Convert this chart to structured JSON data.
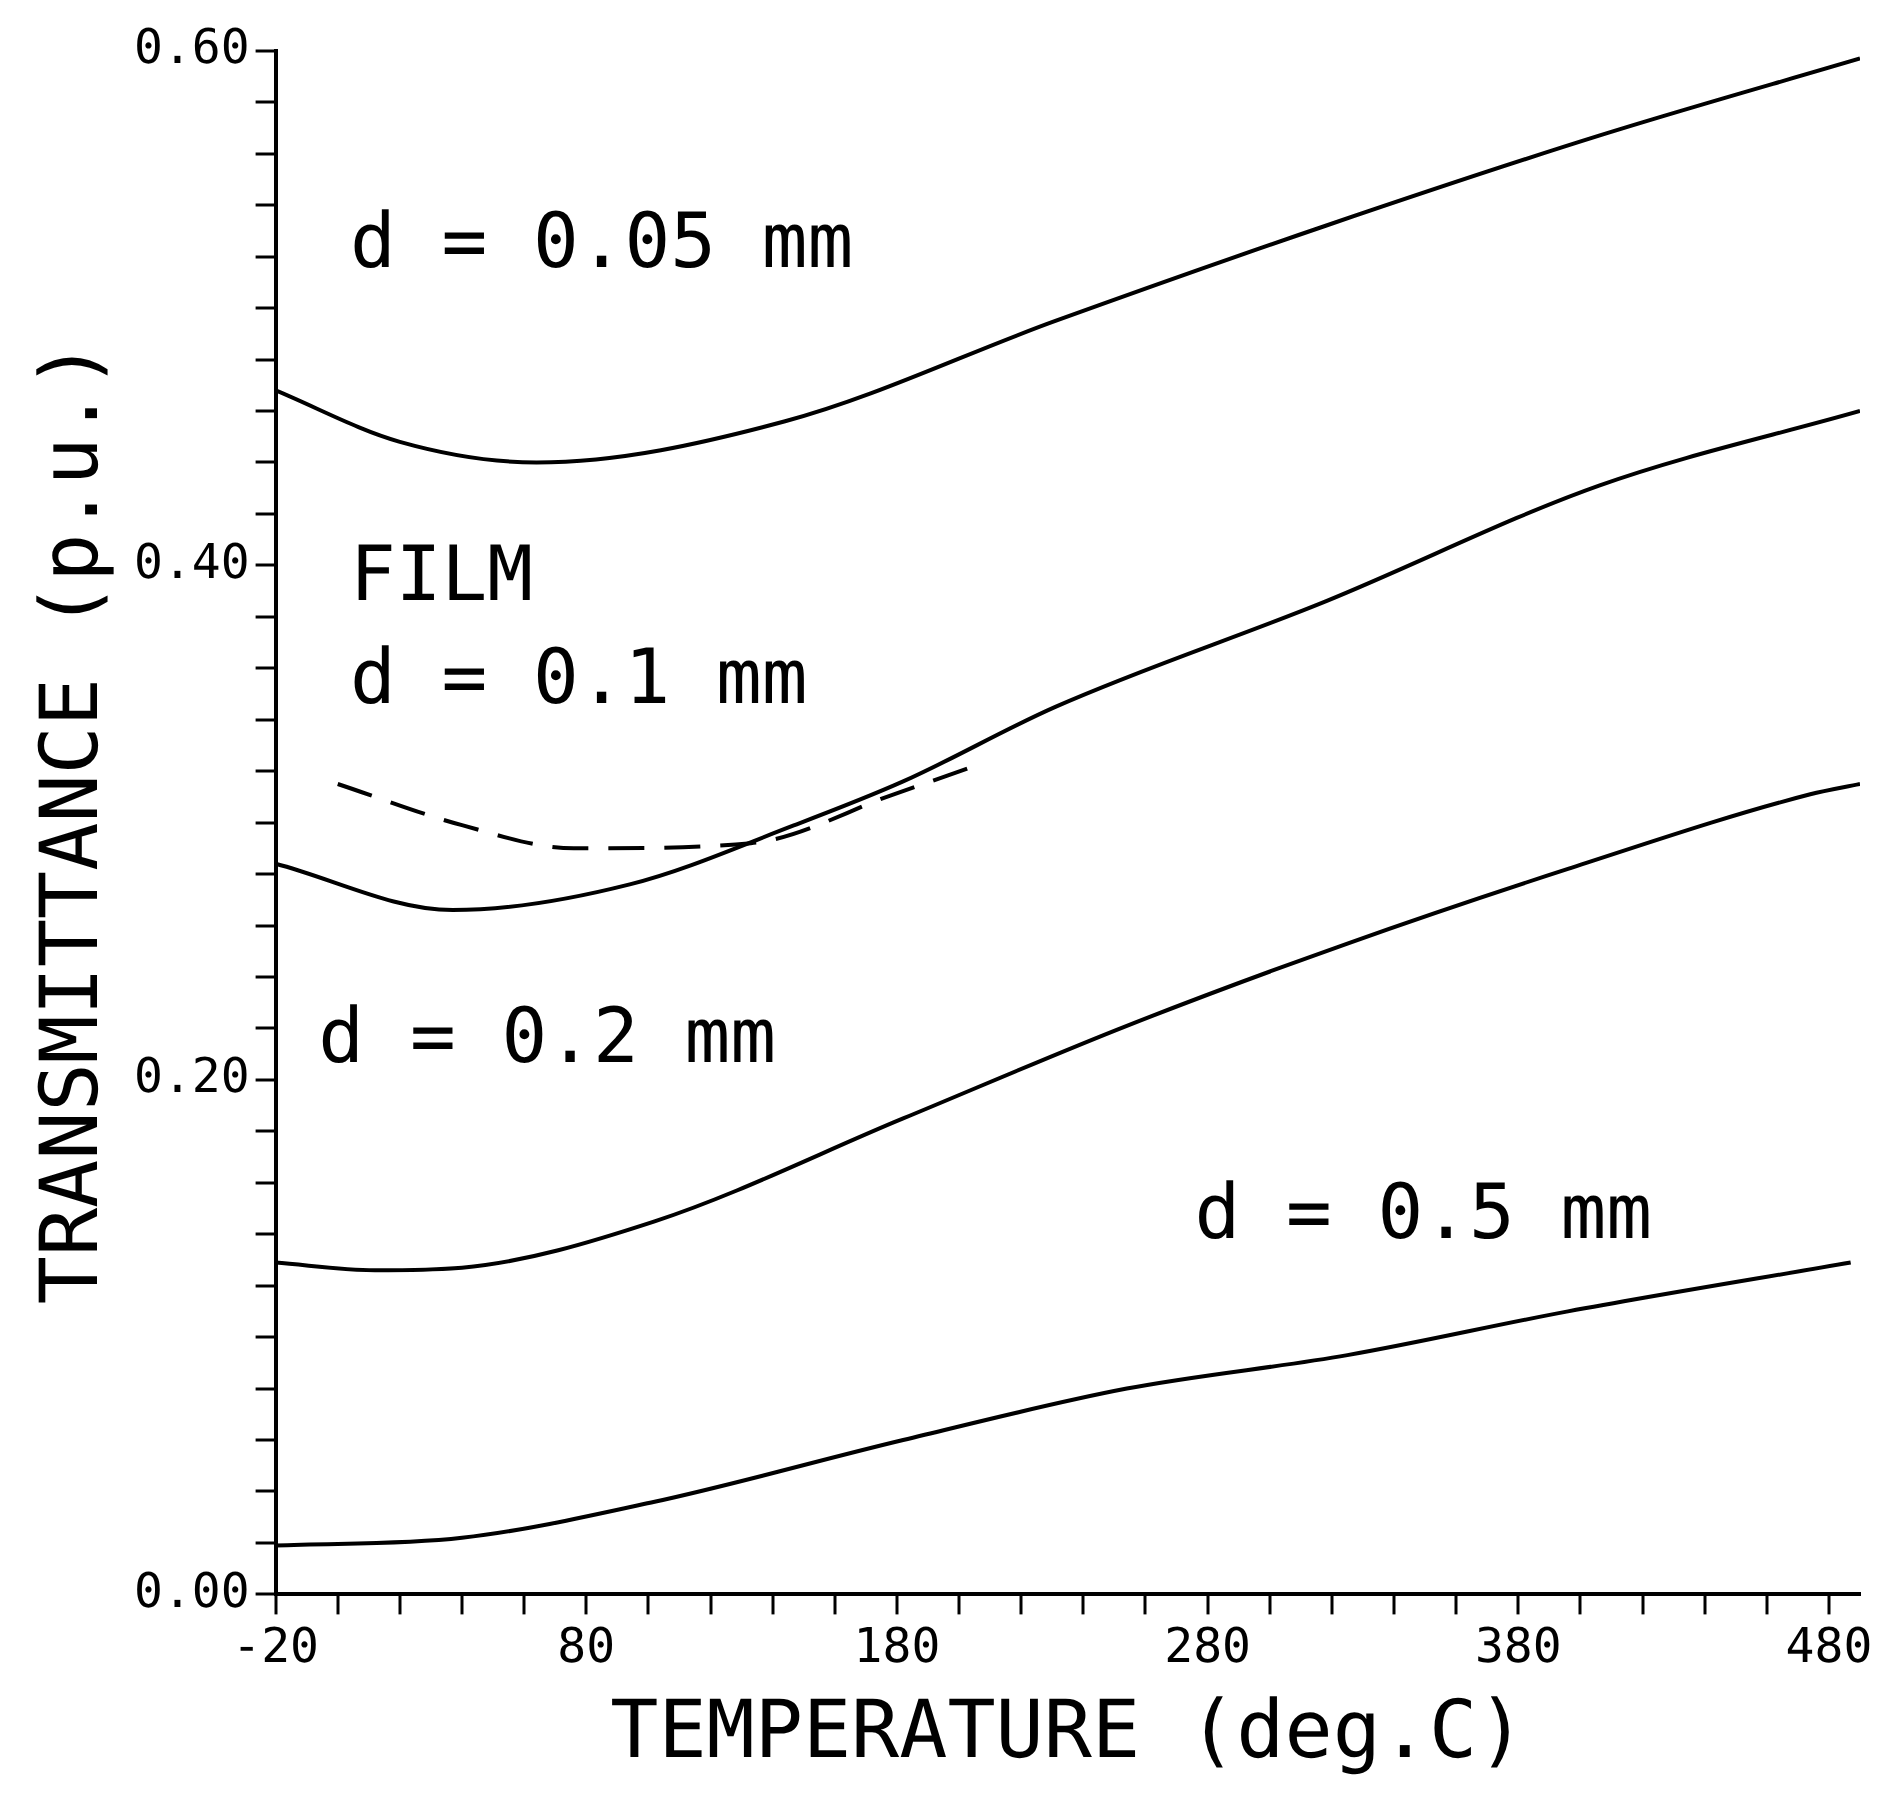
{
  "chart_data": {
    "type": "line",
    "xlabel": "TEMPERATURE (deg.C)",
    "ylabel": "TRANSMITTANCE (p.u.)",
    "xlim": [
      -20,
      490
    ],
    "ylim": [
      0,
      0.6
    ],
    "xticks": [
      -20,
      {
        "value": 0,
        "label": null
      },
      {
        "value": 20,
        "label": null
      },
      {
        "value": 40,
        "label": null
      },
      {
        "value": 60,
        "label": null
      },
      80,
      {
        "value": 100,
        "label": null
      },
      {
        "value": 120,
        "label": null
      },
      {
        "value": 140,
        "label": null
      },
      {
        "value": 160,
        "label": null
      },
      180,
      {
        "value": 200,
        "label": null
      },
      {
        "value": 220,
        "label": null
      },
      {
        "value": 240,
        "label": null
      },
      {
        "value": 260,
        "label": null
      },
      280,
      {
        "value": 300,
        "label": null
      },
      {
        "value": 320,
        "label": null
      },
      {
        "value": 340,
        "label": null
      },
      {
        "value": 360,
        "label": null
      },
      380,
      {
        "value": 400,
        "label": null
      },
      {
        "value": 420,
        "label": null
      },
      {
        "value": 440,
        "label": null
      },
      {
        "value": 460,
        "label": null
      },
      480
    ],
    "yticks": [
      {
        "value": 0,
        "label": "0.00"
      },
      {
        "value": 0.02,
        "label": null
      },
      {
        "value": 0.04,
        "label": null
      },
      {
        "value": 0.06,
        "label": null
      },
      {
        "value": 0.08,
        "label": null
      },
      {
        "value": 0.1,
        "label": null
      },
      {
        "value": 0.12,
        "label": null
      },
      {
        "value": 0.14,
        "label": null
      },
      {
        "value": 0.16,
        "label": null
      },
      {
        "value": 0.18,
        "label": null
      },
      {
        "value": 0.2,
        "label": "0.20"
      },
      {
        "value": 0.22,
        "label": null
      },
      {
        "value": 0.24,
        "label": null
      },
      {
        "value": 0.26,
        "label": null
      },
      {
        "value": 0.28,
        "label": null
      },
      {
        "value": 0.3,
        "label": null
      },
      {
        "value": 0.32,
        "label": null
      },
      {
        "value": 0.34,
        "label": null
      },
      {
        "value": 0.36,
        "label": null
      },
      {
        "value": 0.38,
        "label": null
      },
      {
        "value": 0.4,
        "label": "0.40"
      },
      {
        "value": 0.42,
        "label": null
      },
      {
        "value": 0.44,
        "label": null
      },
      {
        "value": 0.46,
        "label": null
      },
      {
        "value": 0.48,
        "label": null
      },
      {
        "value": 0.5,
        "label": null
      },
      {
        "value": 0.52,
        "label": null
      },
      {
        "value": 0.54,
        "label": null
      },
      {
        "value": 0.56,
        "label": null
      },
      {
        "value": 0.58,
        "label": null
      },
      {
        "value": 0.6,
        "label": "0.60"
      }
    ],
    "grid": false,
    "legend": false,
    "marker": "none",
    "line_style": "solid",
    "series": [
      {
        "color": "#000000",
        "x": [
          -20,
          20,
          64,
          144,
          231,
          318,
          406,
          490
        ],
        "values": [
          0.468,
          0.448,
          0.44,
          0.456,
          0.495,
          0.532,
          0.567,
          0.597
        ]
      },
      {
        "color": "#000000",
        "x": [
          -20,
          37,
          94,
          147,
          182,
          231,
          318,
          406,
          490
        ],
        "values": [
          0.284,
          0.266,
          0.276,
          0.299,
          0.316,
          0.345,
          0.386,
          0.431,
          0.46
        ]
      },
      {
        "color": "#000000",
        "line_style": "dashed",
        "x": [
          0,
          40,
          76,
          133,
          179,
          205
        ],
        "values": [
          0.315,
          0.299,
          0.29,
          0.292,
          0.311,
          0.322
        ]
      },
      {
        "color": "#000000",
        "x": [
          -20,
          12,
          40,
          102,
          182,
          254,
          325,
          396,
          474,
          490
        ],
        "values": [
          0.129,
          0.126,
          0.127,
          0.145,
          0.185,
          0.221,
          0.253,
          0.282,
          0.311,
          0.315
        ]
      },
      {
        "color": "#000000",
        "x": [
          -20,
          40,
          102,
          182,
          254,
          325,
          396,
          487
        ],
        "values": [
          0.019,
          0.022,
          0.036,
          0.06,
          0.08,
          0.093,
          0.11,
          0.129
        ]
      }
    ],
    "annotations": [
      "d = 0.05 mm",
      "FILM",
      "d = 0.1 mm",
      "d = 0.2 mm",
      "d = 0.5 mm"
    ]
  }
}
